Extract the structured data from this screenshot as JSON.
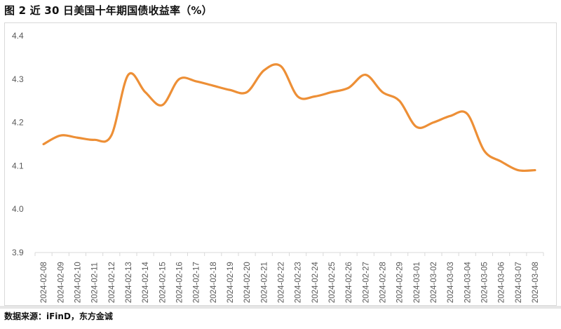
{
  "title": "图 2  近 30 日美国十年期国债收益率（%）",
  "source": "数据来源：iFinD，东方金诚",
  "colors": {
    "line": "#ED8F36",
    "axis": "#d9d9d9",
    "tick_text": "#595959"
  },
  "chart_data": {
    "type": "line",
    "title": "图 2  近 30 日美国十年期国债收益率（%）",
    "xlabel": "",
    "ylabel": "",
    "ylim": [
      3.9,
      4.4
    ],
    "yticks": [
      "4.4",
      "4.3",
      "4.2",
      "4.1",
      "4.0",
      "3.9"
    ],
    "grid": false,
    "legend": null,
    "smooth": true,
    "categories": [
      "2024-02-08",
      "2024-02-09",
      "2024-02-10",
      "2024-02-11",
      "2024-02-12",
      "2024-02-13",
      "2024-02-14",
      "2024-02-15",
      "2024-02-16",
      "2024-02-17",
      "2024-02-18",
      "2024-02-19",
      "2024-02-20",
      "2024-02-21",
      "2024-02-22",
      "2024-02-23",
      "2024-02-24",
      "2024-02-25",
      "2024-02-26",
      "2024-02-27",
      "2024-02-28",
      "2024-02-29",
      "2024-03-01",
      "2024-03-02",
      "2024-03-03",
      "2024-03-04",
      "2024-03-05",
      "2024-03-06",
      "2024-03-07",
      "2024-03-08"
    ],
    "series": [
      {
        "name": "美国十年期国债收益率",
        "values": [
          4.15,
          4.17,
          4.165,
          4.16,
          4.17,
          4.31,
          4.27,
          4.24,
          4.3,
          4.295,
          4.285,
          4.275,
          4.27,
          4.32,
          4.33,
          4.26,
          4.26,
          4.27,
          4.28,
          4.31,
          4.27,
          4.25,
          4.19,
          4.2,
          4.215,
          4.22,
          4.135,
          4.11,
          4.09,
          4.09
        ]
      }
    ]
  }
}
